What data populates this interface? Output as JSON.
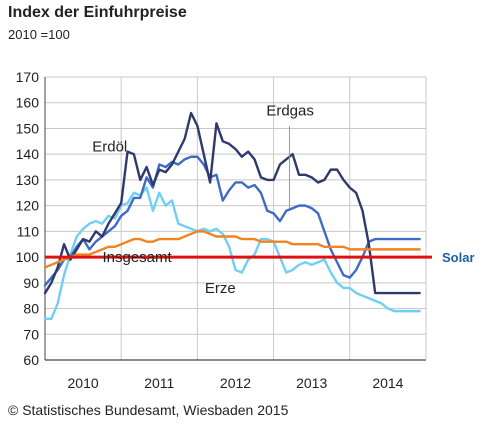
{
  "header": {
    "title": "Index der Einfuhrpreise",
    "subtitle": "2010 =100"
  },
  "footer": {
    "credit": "© Statistisches Bundesamt, Wiesbaden 2015"
  },
  "chart_data": {
    "type": "line",
    "ylim": [
      60,
      170
    ],
    "yticks": [
      60,
      70,
      80,
      90,
      100,
      110,
      120,
      130,
      140,
      150,
      160,
      170
    ],
    "xlim": [
      0,
      60
    ],
    "year_labels": [
      "2010",
      "2011",
      "2012",
      "2013",
      "2014"
    ],
    "grid": true,
    "x": [
      0,
      1,
      2,
      3,
      4,
      5,
      6,
      7,
      8,
      9,
      10,
      11,
      12,
      13,
      14,
      15,
      16,
      17,
      18,
      19,
      20,
      21,
      22,
      23,
      24,
      25,
      26,
      27,
      28,
      29,
      30,
      31,
      32,
      33,
      34,
      35,
      36,
      37,
      38,
      39,
      40,
      41,
      42,
      43,
      44,
      45,
      46,
      47,
      48,
      49,
      50,
      51,
      52,
      53,
      54,
      55,
      56,
      57,
      58,
      59
    ],
    "series": [
      {
        "name": "Erdöl",
        "color": "#2e3a6e",
        "label_x": 10.2,
        "label_y": 141,
        "values": [
          86,
          90,
          96,
          105,
          99,
          103,
          107,
          106,
          110,
          108,
          113,
          117,
          121,
          141,
          140,
          130,
          135,
          128,
          134,
          133,
          136,
          141,
          146,
          156,
          151,
          140,
          129,
          152,
          145,
          144,
          142,
          139,
          141,
          138,
          131,
          130,
          130,
          136,
          138,
          140,
          132,
          132,
          131,
          129,
          130,
          134,
          134,
          130,
          127,
          125,
          118,
          105,
          86,
          86,
          86,
          86,
          86,
          86,
          86,
          86
        ]
      },
      {
        "name": "Erdgas",
        "color": "#3f6bc4",
        "label_x": 38.6,
        "label_y": 155,
        "values": [
          89,
          92,
          95,
          99,
          100,
          104,
          107,
          103,
          106,
          108,
          110,
          112,
          116,
          118,
          123,
          123,
          131,
          127,
          136,
          135,
          137,
          136,
          138,
          139,
          139,
          136,
          131,
          132,
          122,
          126,
          129,
          129,
          127,
          128,
          125,
          118,
          117,
          114,
          118,
          119,
          120,
          120,
          119,
          117,
          110,
          103,
          98,
          93,
          92,
          95,
          100,
          106,
          107,
          107,
          107,
          107,
          107,
          107,
          107,
          107
        ]
      },
      {
        "name": "Erze",
        "color": "#6fcff4",
        "label_x": 27.6,
        "label_y": 86,
        "values": [
          76,
          76,
          82,
          93,
          101,
          108,
          111,
          113,
          114,
          113,
          116,
          115,
          120,
          121,
          125,
          124,
          127,
          118,
          125,
          120,
          122,
          113,
          112,
          111,
          110,
          111,
          110,
          111,
          109,
          104,
          95,
          94,
          99,
          101,
          107,
          107,
          106,
          100,
          94,
          95,
          97,
          98,
          97,
          98,
          99,
          94,
          90,
          88,
          88,
          86,
          85,
          84,
          83,
          82,
          80,
          79,
          79,
          79,
          79,
          79
        ]
      },
      {
        "name": "Insgesamt",
        "color": "#f08420",
        "label_x": 14.5,
        "label_y": 98,
        "values": [
          96,
          97,
          98,
          99,
          100,
          101,
          101,
          101,
          102,
          103,
          104,
          104,
          105,
          106,
          107,
          107,
          106,
          106,
          107,
          107,
          107,
          107,
          108,
          109,
          110,
          110,
          109,
          108,
          108,
          108,
          108,
          107,
          107,
          107,
          106,
          106,
          106,
          106,
          106,
          105,
          105,
          105,
          105,
          105,
          104,
          104,
          104,
          104,
          103,
          103,
          103,
          103,
          103,
          103,
          103,
          103,
          103,
          103,
          103,
          103
        ]
      }
    ],
    "annotations": [
      {
        "text": "Solar",
        "color": "#1f5fa8",
        "y": 100
      }
    ],
    "reference_line": {
      "y": 100,
      "color": "#e01010"
    }
  }
}
